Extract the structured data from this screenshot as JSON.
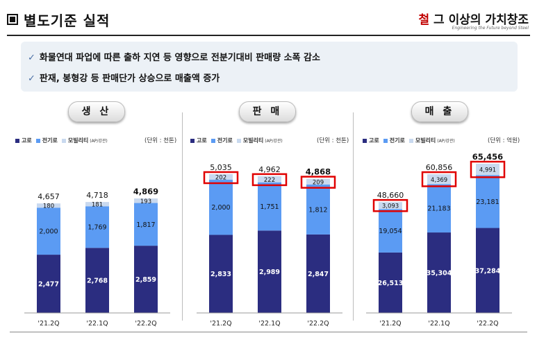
{
  "header": {
    "title": "별도기준 실적",
    "logo_text_a": "철",
    "logo_text_b": "그 이상의 가치창조",
    "logo_subtitle": "Engineering the Future beyond Steel"
  },
  "bullets": [
    {
      "icon": "check-icon",
      "text": "화물연대 파업에 따른 출하 지연 등 영향으로 전분기대비 판매량 소폭 감소"
    },
    {
      "icon": "check-icon",
      "text": "판재, 봉형강 등 판매단가 상승으로 매출액 증가"
    }
  ],
  "legend": {
    "items": [
      "고로",
      "전기로",
      "모빌리티"
    ],
    "mobility_note": "(AP/강관)"
  },
  "colors": {
    "고로": "#2b2d80",
    "전기로": "#5b9bf3",
    "모빌리티": "#c9d9ef",
    "highlight": "#e00000"
  },
  "chart_data": [
    {
      "type": "bar",
      "title": "생 산",
      "unit": "(단위 : 천톤)",
      "categories": [
        "'21.2Q",
        "'22.1Q",
        "'22.2Q"
      ],
      "series": [
        {
          "name": "고로",
          "values": [
            2477,
            2768,
            2859
          ]
        },
        {
          "name": "전기로",
          "values": [
            2000,
            1769,
            1817
          ]
        },
        {
          "name": "모빌리티",
          "values": [
            180,
            181,
            193
          ]
        }
      ],
      "totals": [
        4657,
        4718,
        4869
      ],
      "highlight_total_last": true,
      "highlight_top_segment": false
    },
    {
      "type": "bar",
      "title": "판 매",
      "unit": "(단위 : 천톤)",
      "categories": [
        "'21.2Q",
        "'22.1Q",
        "'22.2Q"
      ],
      "series": [
        {
          "name": "고로",
          "values": [
            2833,
            2989,
            2847
          ]
        },
        {
          "name": "전기로",
          "values": [
            2000,
            1751,
            1812
          ]
        },
        {
          "name": "모빌리티",
          "values": [
            202,
            222,
            209
          ]
        }
      ],
      "totals": [
        5035,
        4962,
        4868
      ],
      "highlight_total_last": true,
      "highlight_top_segment": true
    },
    {
      "type": "bar",
      "title": "매 출",
      "unit": "(단위 : 억원)",
      "categories": [
        "'21.2Q",
        "'22.1Q",
        "'22.2Q"
      ],
      "series": [
        {
          "name": "고로",
          "values": [
            26513,
            35304,
            37284
          ]
        },
        {
          "name": "전기로",
          "values": [
            19054,
            21183,
            23181
          ]
        },
        {
          "name": "모빌리티",
          "values": [
            3093,
            4369,
            4991
          ]
        }
      ],
      "totals": [
        48660,
        60856,
        65456
      ],
      "highlight_total_last": true,
      "highlight_top_segment": true
    }
  ]
}
